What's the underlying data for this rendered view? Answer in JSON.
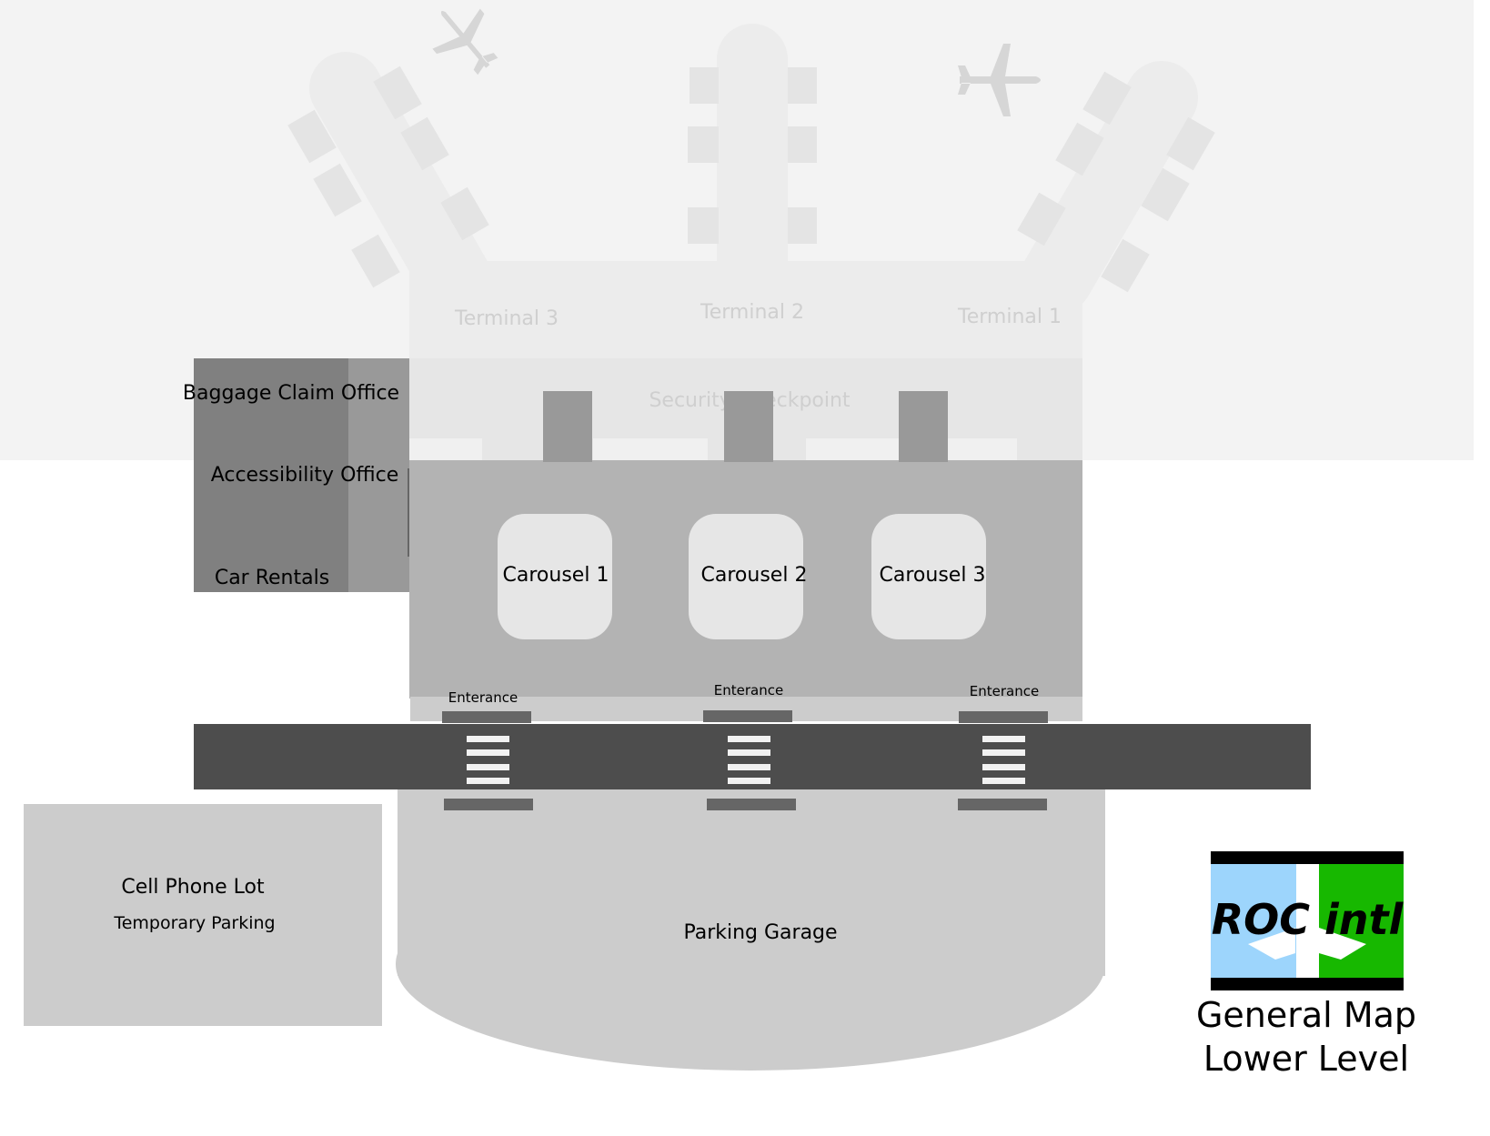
{
  "colors": {
    "upper_level_bg": "#f3f3f3",
    "terminal_wing": "#ececec",
    "gate": "#e4e4e4",
    "security_band": "#e6e6e6",
    "baggage_hall": "#b3b3b3",
    "carousel": "#e6e6e6",
    "office_dark": "#808080",
    "office_light": "#999999",
    "road": "#4d4d4d",
    "crosswalk": "#f2f2f2",
    "entrance_pad": "#666666",
    "entrance_strip": "#cccccc",
    "parking": "#cccccc",
    "logo_blue": "#9dd5fc",
    "logo_green": "#17b800",
    "logo_black": "#000000"
  },
  "upper_level": {
    "terminals": [
      {
        "id": "terminal-3",
        "label": "Terminal 3"
      },
      {
        "id": "terminal-2",
        "label": "Terminal 2"
      },
      {
        "id": "terminal-1",
        "label": "Terminal 1"
      }
    ],
    "security": {
      "label": "Security Checkpoint"
    },
    "plane_icons": [
      "airplane-icon",
      "airplane-icon"
    ]
  },
  "lower_level": {
    "offices": [
      {
        "id": "baggage-claim-office",
        "label": "Baggage Claim Office"
      },
      {
        "id": "accessibility-office",
        "label": "Accessibility Office"
      },
      {
        "id": "car-rentals",
        "label": "Car Rentals"
      }
    ],
    "carousels": [
      {
        "id": "carousel-1",
        "label": "Carousel 1"
      },
      {
        "id": "carousel-2",
        "label": "Carousel 2"
      },
      {
        "id": "carousel-3",
        "label": "Carousel 3"
      }
    ],
    "entrances": [
      {
        "id": "entrance-1",
        "label": "Enterance"
      },
      {
        "id": "entrance-2",
        "label": "Enterance"
      },
      {
        "id": "entrance-3",
        "label": "Enterance"
      }
    ],
    "cell_phone_lot": {
      "title": "Cell Phone Lot",
      "subtitle": "Temporary Parking"
    },
    "parking_garage": {
      "label": "Parking Garage"
    }
  },
  "logo": {
    "text": "ROC intl"
  },
  "map_title": {
    "line1": "General Map",
    "line2": "Lower Level"
  }
}
